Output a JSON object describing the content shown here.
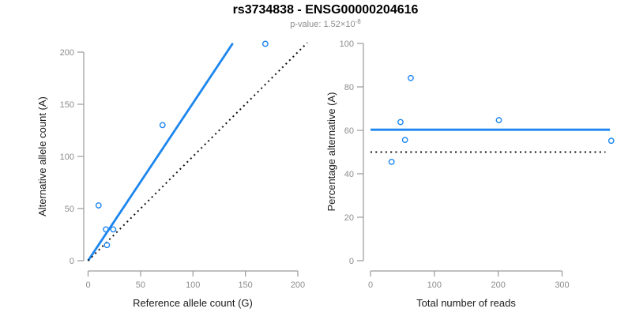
{
  "figure": {
    "title": "rs3734838 - ENSG00000204616",
    "p_value": {
      "prefix": "p-value: ",
      "mantissa": "1.52",
      "times_ten": "×10",
      "exponent": "-8"
    }
  },
  "colors": {
    "accent_blue": "#1c86ee",
    "line_black": "#111111",
    "axis_gray": "#9a9a9a",
    "tick_text_gray": "#8c8c8c",
    "axis_title_black": "#1a1a1a",
    "subtitle_gray": "#8c8c8c"
  },
  "chart_data": [
    {
      "type": "scatter",
      "title": "",
      "xlabel": "Reference allele count (G)",
      "ylabel": "Alternative allele count (A)",
      "x_ticks": [
        0,
        50,
        100,
        150,
        200
      ],
      "y_ticks": [
        0,
        50,
        100,
        150,
        200
      ],
      "xlim": [
        0,
        207
      ],
      "ylim": [
        0,
        209
      ],
      "grid": false,
      "legend": null,
      "point_color": "#1c86ee",
      "points": [
        [
          10,
          53
        ],
        [
          17,
          30
        ],
        [
          24,
          30
        ],
        [
          18,
          15
        ],
        [
          71,
          130
        ],
        [
          169,
          208
        ]
      ],
      "lines": [
        {
          "name": "fit-line",
          "style": "solid",
          "color": "#1c86ee",
          "width": 2.8,
          "from": [
            0,
            0
          ],
          "to": [
            138,
            208.5
          ]
        },
        {
          "name": "identity-line",
          "style": "dotted",
          "color": "#111111",
          "width": 2,
          "from": [
            0,
            0
          ],
          "to": [
            209,
            209
          ]
        }
      ]
    },
    {
      "type": "scatter",
      "title": "",
      "xlabel": "Total number of reads",
      "ylabel": "Percentage alternative (A)",
      "x_ticks": [
        0,
        100,
        200,
        300
      ],
      "y_ticks": [
        0,
        20,
        40,
        60,
        80,
        100
      ],
      "xlim": [
        0,
        377
      ],
      "ylim": [
        0,
        100
      ],
      "grid": false,
      "legend": null,
      "point_color": "#1c86ee",
      "points": [
        [
          33,
          45.5
        ],
        [
          47,
          63.8
        ],
        [
          54,
          55.6
        ],
        [
          63,
          84.1
        ],
        [
          201,
          64.7
        ],
        [
          377,
          55.2
        ]
      ],
      "lines": [
        {
          "name": "mean-percentage-line",
          "style": "solid",
          "color": "#1c86ee",
          "width": 2.8,
          "from": [
            0,
            60.3
          ],
          "to": [
            375,
            60.3
          ]
        },
        {
          "name": "expected-50pct-line",
          "style": "dotted",
          "color": "#111111",
          "width": 2,
          "from": [
            0,
            50
          ],
          "to": [
            368,
            50
          ]
        }
      ]
    }
  ]
}
